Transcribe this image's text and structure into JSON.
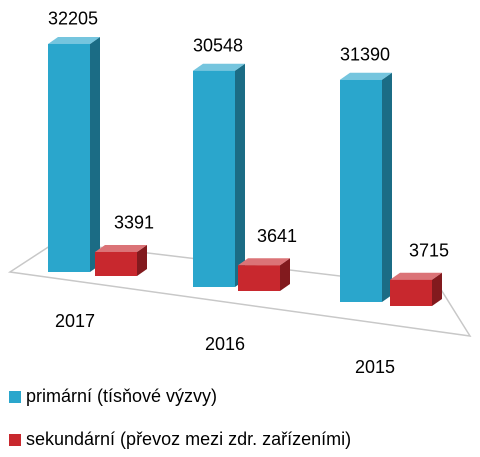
{
  "chart_data": {
    "type": "bar3d",
    "categories": [
      "2017",
      "2016",
      "2015"
    ],
    "series": [
      {
        "name": "primární (tísňové výzvy)",
        "color": "#2aa6cc",
        "values": [
          32205,
          30548,
          31390
        ]
      },
      {
        "name": "sekundární (převoz mezi zdr. zařízeními)",
        "color": "#c8282e",
        "values": [
          3391,
          3641,
          3715
        ]
      }
    ],
    "data_labels": true
  }
}
